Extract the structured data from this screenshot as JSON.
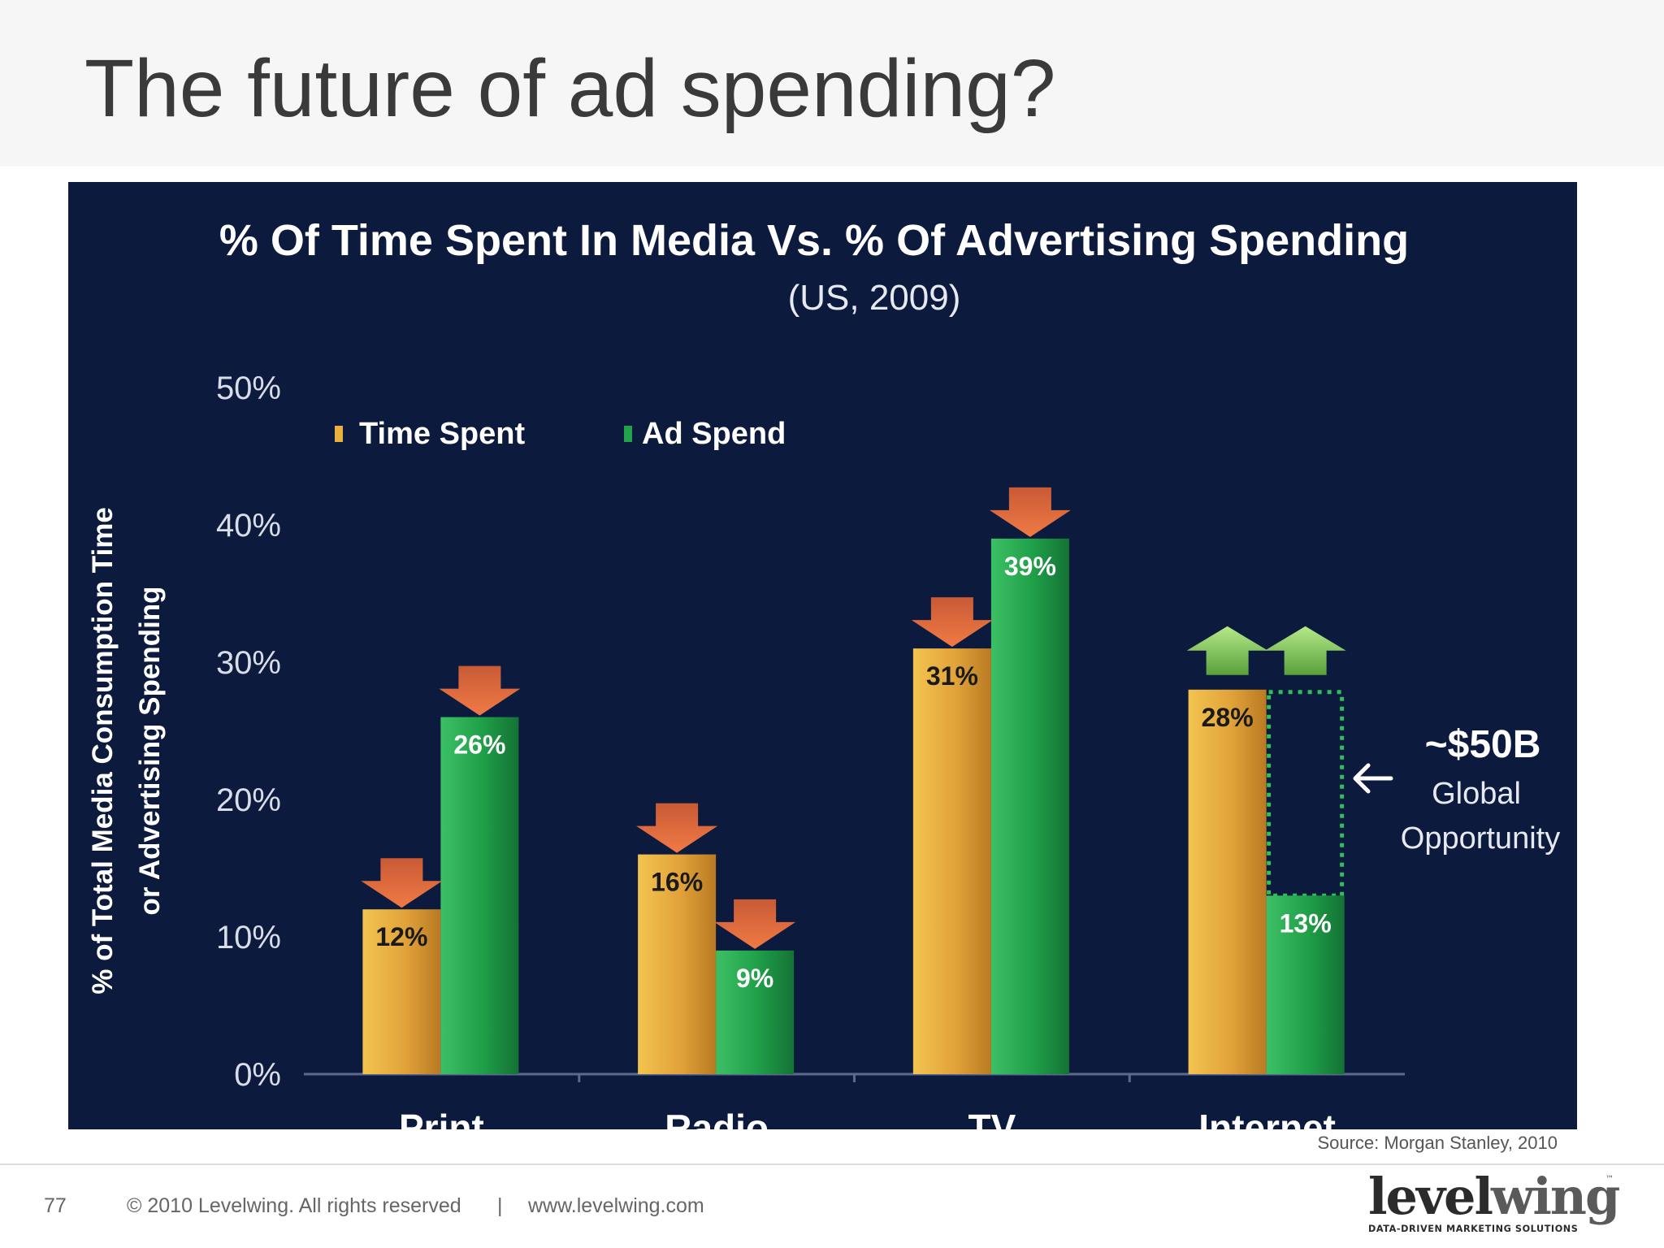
{
  "slide": {
    "title": "The future of ad spending?",
    "source": "Source: Morgan Stanley, 2010"
  },
  "footer": {
    "page_number": "77",
    "copyright": "© 2010  Levelwing. All rights reserved",
    "separator": "|",
    "website": "www.levelwing.com"
  },
  "logo": {
    "word_part1": "level",
    "word_part2": "wing",
    "tagline": "DATA-DRIVEN MARKETING SOLUTIONS",
    "tm": "™"
  },
  "colors": {
    "panel_bg": "#0c1a3d",
    "time_spent": "#e8b040",
    "ad_spend": "#22a24a",
    "down_arrow": "#e8643a",
    "up_arrow": "#8fd05a"
  },
  "chart_data": {
    "type": "bar",
    "title": "% Of Time Spent In Media Vs. % Of Advertising Spending",
    "subtitle": "(US, 2009)",
    "ylabel_line1": "% of Total Media Consumption Time",
    "ylabel_line2": "or Advertising Spending",
    "ylim": [
      0,
      50
    ],
    "yticks": [
      0,
      10,
      20,
      30,
      40,
      50
    ],
    "ytick_labels": [
      "0%",
      "10%",
      "20%",
      "30%",
      "40%",
      "50%"
    ],
    "legend_position": "top-left",
    "categories": [
      "Print",
      "Radio",
      "TV",
      "Internet"
    ],
    "series": [
      {
        "name": "Time Spent",
        "values": [
          12,
          16,
          31,
          28
        ],
        "labels": [
          "12%",
          "16%",
          "31%",
          "28%"
        ],
        "trend": [
          "down",
          "down",
          "down",
          "up"
        ]
      },
      {
        "name": "Ad Spend",
        "values": [
          26,
          9,
          39,
          13
        ],
        "labels": [
          "26%",
          "9%",
          "39%",
          "13%"
        ],
        "trend": [
          "down",
          "down",
          "down",
          "up"
        ]
      }
    ],
    "annotation": {
      "category": "Internet",
      "from": 13,
      "to": 28,
      "line1": "~$50B",
      "line2": "Global",
      "line3": "Opportunity"
    }
  }
}
